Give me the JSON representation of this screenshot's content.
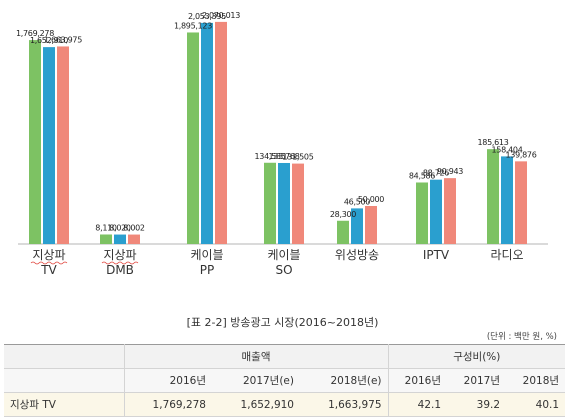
{
  "chart_data": {
    "type": "bar",
    "categories": [
      {
        "line1": "지상파",
        "line2": "TV",
        "underline": true
      },
      {
        "line1": "지상파",
        "line2": "DMB",
        "underline": true
      },
      {
        "line1": "케이블",
        "line2": "PP",
        "underline": false
      },
      {
        "line1": "케이블",
        "line2": "SO",
        "underline": false
      },
      {
        "line1": "위성방송",
        "line2": "",
        "underline": false
      },
      {
        "line1": "IPTV",
        "line2": "",
        "underline": false
      },
      {
        "line1": "라디오",
        "line2": "",
        "underline": false
      }
    ],
    "series": [
      {
        "name": "2016년",
        "color": "#7dc263",
        "values": [
          1769278,
          8110,
          1895123,
          134585,
          28300,
          84586,
          185613
        ]
      },
      {
        "name": "2017년(e)",
        "color": "#2a9fcf",
        "values": [
          1652910,
          8020,
          2053395,
          133768,
          46500,
          88726,
          158404
        ]
      },
      {
        "name": "2018년(e)",
        "color": "#f0887a",
        "values": [
          1663975,
          8002,
          2070013,
          131505,
          50000,
          90943,
          139876
        ]
      }
    ],
    "value_labels": [
      [
        "1,769,278",
        "1,652,910",
        "1,663,975"
      ],
      [
        "8,110",
        "8,020",
        "8,002"
      ],
      [
        "1,895,123",
        "2,053,395",
        "2,070,013"
      ],
      [
        "134,585",
        "133,768",
        "131,505"
      ],
      [
        "28,300",
        "46,500",
        "50,000"
      ],
      [
        "84,586",
        "88,726",
        "90,943"
      ],
      [
        "185,613",
        "158,404",
        "139,876"
      ]
    ],
    "scale_note": "segmented axis: category values drawn against a compressed/broken scale",
    "ylim": [
      0,
      2100000
    ],
    "grid": false,
    "legend": "none"
  },
  "table": {
    "caption": "[표 2-2] 방송광고 시장(2016~2018년)",
    "unit": "(단위 : 백만 원, %)",
    "group_sales": "매출액",
    "group_share": "구성비(%)",
    "years": [
      "2016년",
      "2017년(e)",
      "2018년(e)",
      "2016년",
      "2017년",
      "2018년"
    ],
    "first_row": [
      "지상파 TV",
      "1,769,278",
      "1,652,910",
      "1,663,975",
      "42.1",
      "39.2",
      "40.1"
    ]
  }
}
